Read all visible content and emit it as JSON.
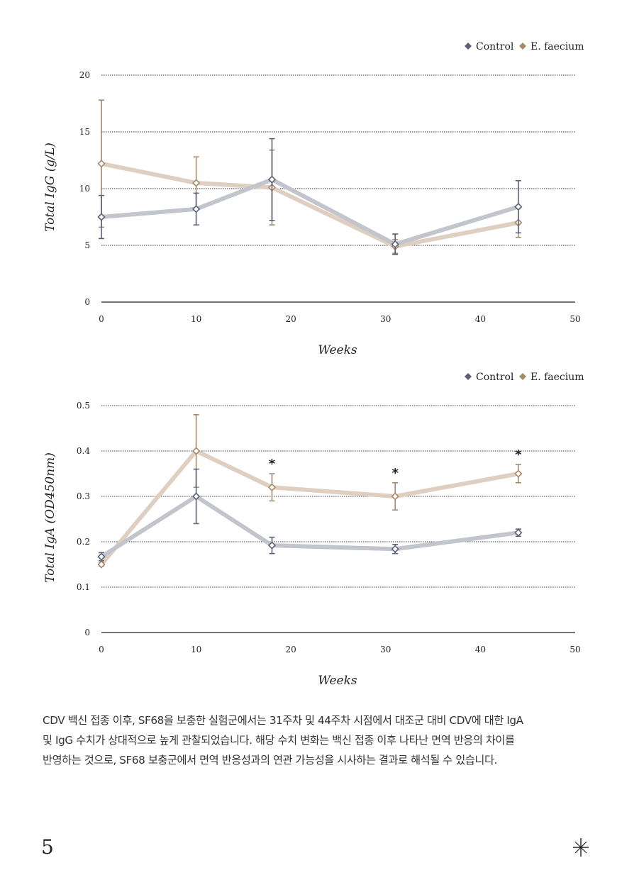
{
  "chart_data": [
    {
      "type": "line",
      "xlabel": "Weeks",
      "ylabel": "Total IgG (g/L)",
      "xlim": [
        0,
        50
      ],
      "ylim": [
        0,
        20
      ],
      "xticks": [
        0,
        10,
        20,
        30,
        40,
        50
      ],
      "yticks": [
        0,
        5,
        10,
        15,
        20
      ],
      "grid": "dotted horizontal",
      "legend": "top-right",
      "series": [
        {
          "name": "Control",
          "color": "#5c6178",
          "line_color": "#c2c5cc",
          "x": [
            0,
            10,
            18,
            31,
            44
          ],
          "values": [
            7.5,
            8.2,
            10.8,
            5.1,
            8.4
          ],
          "error": [
            1.9,
            1.4,
            3.6,
            0.9,
            2.3
          ]
        },
        {
          "name": "E. faecium",
          "color": "#a7896a",
          "line_color": "#dfcfc1",
          "x": [
            0,
            10,
            18,
            31,
            44
          ],
          "values": [
            12.2,
            10.5,
            10.1,
            4.9,
            7.0
          ],
          "error": [
            5.6,
            2.3,
            3.3,
            0.6,
            1.3
          ]
        }
      ],
      "annotations": []
    },
    {
      "type": "line",
      "xlabel": "Weeks",
      "ylabel": "Total IgA (OD450nm)",
      "xlim": [
        0,
        50
      ],
      "ylim": [
        0,
        0.5
      ],
      "xticks": [
        0,
        10,
        20,
        30,
        40,
        50
      ],
      "yticks": [
        0,
        0.1,
        0.2,
        0.3,
        0.4,
        0.5
      ],
      "grid": "dotted horizontal",
      "legend": "top-right",
      "series": [
        {
          "name": "Control",
          "color": "#5c6178",
          "line_color": "#c2c5cc",
          "x": [
            0,
            10,
            18,
            31,
            44
          ],
          "values": [
            0.167,
            0.3,
            0.192,
            0.184,
            0.22
          ],
          "error": [
            0.009,
            0.06,
            0.018,
            0.01,
            0.008
          ]
        },
        {
          "name": "E. faecium",
          "color": "#a7896a",
          "line_color": "#dfcfc1",
          "x": [
            0,
            10,
            18,
            31,
            44
          ],
          "values": [
            0.15,
            0.4,
            0.32,
            0.3,
            0.35
          ],
          "error": [
            0.003,
            0.08,
            0.03,
            0.03,
            0.02
          ]
        }
      ],
      "annotations": [
        {
          "x": 18,
          "text": "*"
        },
        {
          "x": 31,
          "text": "*"
        },
        {
          "x": 44,
          "text": "*"
        }
      ]
    }
  ],
  "caption": [
    "CDV 백신 접종 이후, SF68을 보충한 실험군에서는 31주차 및 44주차 시점에서 대조군 대비 CDV에 대한 IgA",
    "및 IgG 수치가 상대적으로 높게 관찰되었습니다. 해당 수치 변화는 백신 접종 이후 나타난 면역 반응의 차이를",
    "반영하는 것으로, SF68 보충군에서 면역 반응성과의 연관 가능성을 시사하는 결과로 해석될 수 있습니다."
  ],
  "page_number": "5",
  "ornament_icon": "asterisk-star-icon"
}
